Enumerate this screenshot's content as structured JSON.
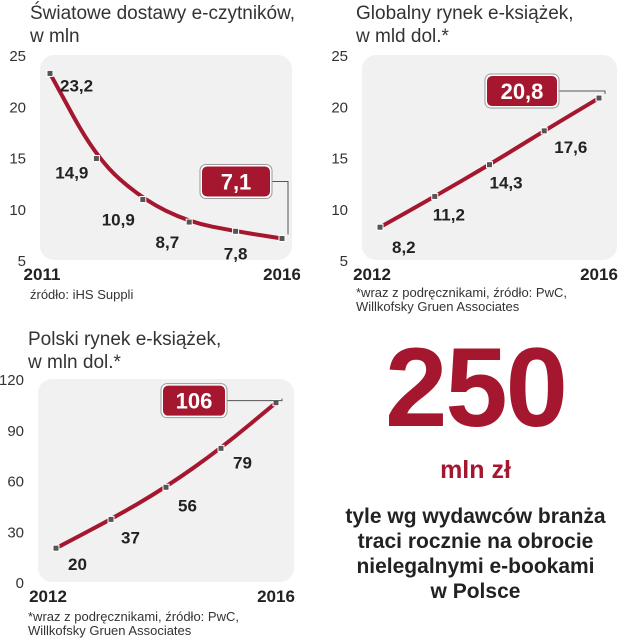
{
  "chart_data": [
    {
      "type": "line",
      "title": [
        "Światowe dostawy e-czytników,",
        "w mln"
      ],
      "x": [
        2011,
        2012,
        2013,
        2014,
        2015,
        2016
      ],
      "xtick_labels": [
        "2011",
        "2016"
      ],
      "values": [
        23.2,
        14.9,
        10.9,
        8.7,
        7.8,
        7.1
      ],
      "value_labels": [
        "23,2",
        "14,9",
        "10,9",
        "8,7",
        "7,8",
        "7,1"
      ],
      "highlight_index": 5,
      "ylim": [
        5,
        25
      ],
      "yticks": [
        5,
        10,
        15,
        20,
        25
      ],
      "source": [
        "źródło: iHS Suppli"
      ],
      "accent": "#a5172f",
      "panel_bg": "#f1f1f1"
    },
    {
      "type": "line",
      "title": [
        "Globalny rynek e-książek,",
        "w mld dol.*"
      ],
      "x": [
        2012,
        2013,
        2014,
        2015,
        2016
      ],
      "xtick_labels": [
        "2012",
        "2016"
      ],
      "values": [
        8.2,
        11.2,
        14.3,
        17.6,
        20.8
      ],
      "value_labels": [
        "8,2",
        "11,2",
        "14,3",
        "17,6",
        "20,8"
      ],
      "highlight_index": 4,
      "ylim": [
        5,
        25
      ],
      "yticks": [
        5,
        10,
        15,
        20,
        25
      ],
      "source": [
        "*wraz z podręcznikami, źródło: PwC,",
        "Willkofsky Gruen Associates"
      ],
      "accent": "#a5172f",
      "panel_bg": "#f1f1f1"
    },
    {
      "type": "line",
      "title": [
        "Polski rynek e-książek,",
        "w mln dol.*"
      ],
      "x": [
        2012,
        2013,
        2014,
        2015,
        2016
      ],
      "xtick_labels": [
        "2012",
        "2016"
      ],
      "values": [
        20,
        37,
        56,
        79,
        106
      ],
      "value_labels": [
        "20",
        "37",
        "56",
        "79",
        "106"
      ],
      "highlight_index": 4,
      "ylim": [
        0,
        120
      ],
      "yticks": [
        0,
        30,
        60,
        90,
        120
      ],
      "source": [
        "*wraz z podręcznikami, źródło: PwC,",
        "Willkofsky Gruen Associates"
      ],
      "accent": "#a5172f",
      "panel_bg": "#f1f1f1"
    }
  ],
  "callout": {
    "number": "250",
    "unit": "mln zł",
    "description": [
      "tyle wg wydawców branża",
      "traci rocznie na obrocie",
      "nielegalnymi e-bookami",
      "w Polsce"
    ],
    "color": "#a5172f"
  }
}
